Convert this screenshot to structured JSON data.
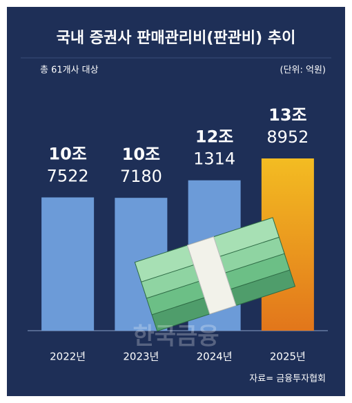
{
  "chart_data": {
    "type": "bar",
    "title": "국내 증권사 판매관리비(판관비) 추이",
    "subtitle": "총 61개사 대상",
    "unit_note": "(단위: 억원)",
    "source": "자료= 금융투자협회",
    "watermark": "한국금융",
    "categories": [
      "2022년",
      "2023년",
      "2024년",
      "2025년"
    ],
    "values": [
      107522,
      107180,
      121314,
      138952
    ],
    "value_labels": [
      [
        "10조",
        "7522"
      ],
      [
        "10조",
        "7180"
      ],
      [
        "12조",
        "1314"
      ],
      [
        "13조",
        "8952"
      ]
    ],
    "colors": [
      "#6c9bd8",
      "#6c9bd8",
      "#6c9bd8",
      "#f0b424"
    ]
  }
}
